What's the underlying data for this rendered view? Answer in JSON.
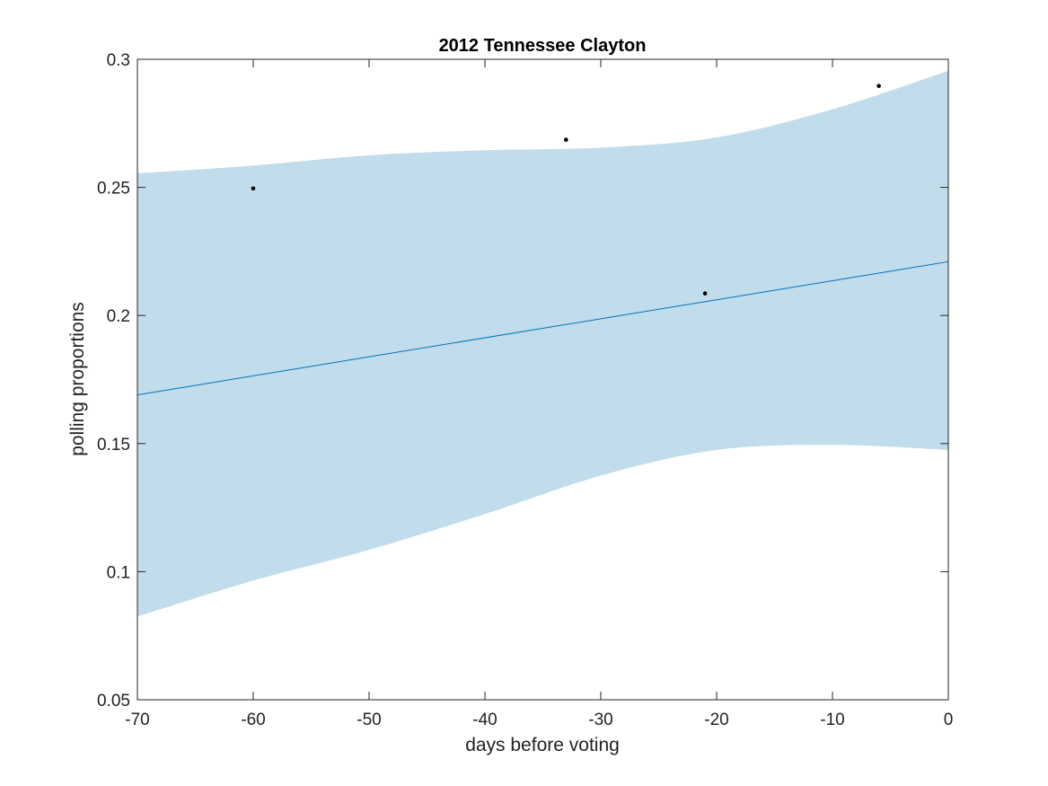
{
  "chart_data": {
    "type": "line",
    "title": "2012 Tennessee Clayton",
    "xlabel": "days before voting",
    "ylabel": "polling proportions",
    "xlim": [
      -70,
      0
    ],
    "ylim": [
      0.05,
      0.3
    ],
    "xticks": [
      -70,
      -60,
      -50,
      -40,
      -30,
      -20,
      -10,
      0
    ],
    "xtick_labels": [
      "-70",
      "-60",
      "-50",
      "-40",
      "-30",
      "-20",
      "-10",
      "0"
    ],
    "yticks": [
      0.05,
      0.1,
      0.15,
      0.2,
      0.25,
      0.3
    ],
    "ytick_labels": [
      "0.05",
      "0.1",
      "0.15",
      "0.2",
      "0.25",
      "0.3"
    ],
    "grid": false,
    "trend_line": {
      "x": [
        -70,
        0
      ],
      "y": [
        0.169,
        0.221
      ],
      "color": "#0072BD"
    },
    "confidence_band": {
      "x": [
        -70,
        -60,
        -50,
        -40,
        -30,
        -20,
        -10,
        0
      ],
      "upper": [
        0.2555,
        0.2585,
        0.2625,
        0.2645,
        0.2655,
        0.2695,
        0.2805,
        0.2955
      ],
      "lower": [
        0.0825,
        0.0965,
        0.1085,
        0.1225,
        0.1375,
        0.1475,
        0.1495,
        0.1475
      ],
      "color": "#c1dcea"
    },
    "points": {
      "x": [
        -60,
        -33,
        -21,
        -6
      ],
      "y": [
        0.2496,
        0.2686,
        0.2086,
        0.2896
      ],
      "color": "#000000"
    }
  }
}
